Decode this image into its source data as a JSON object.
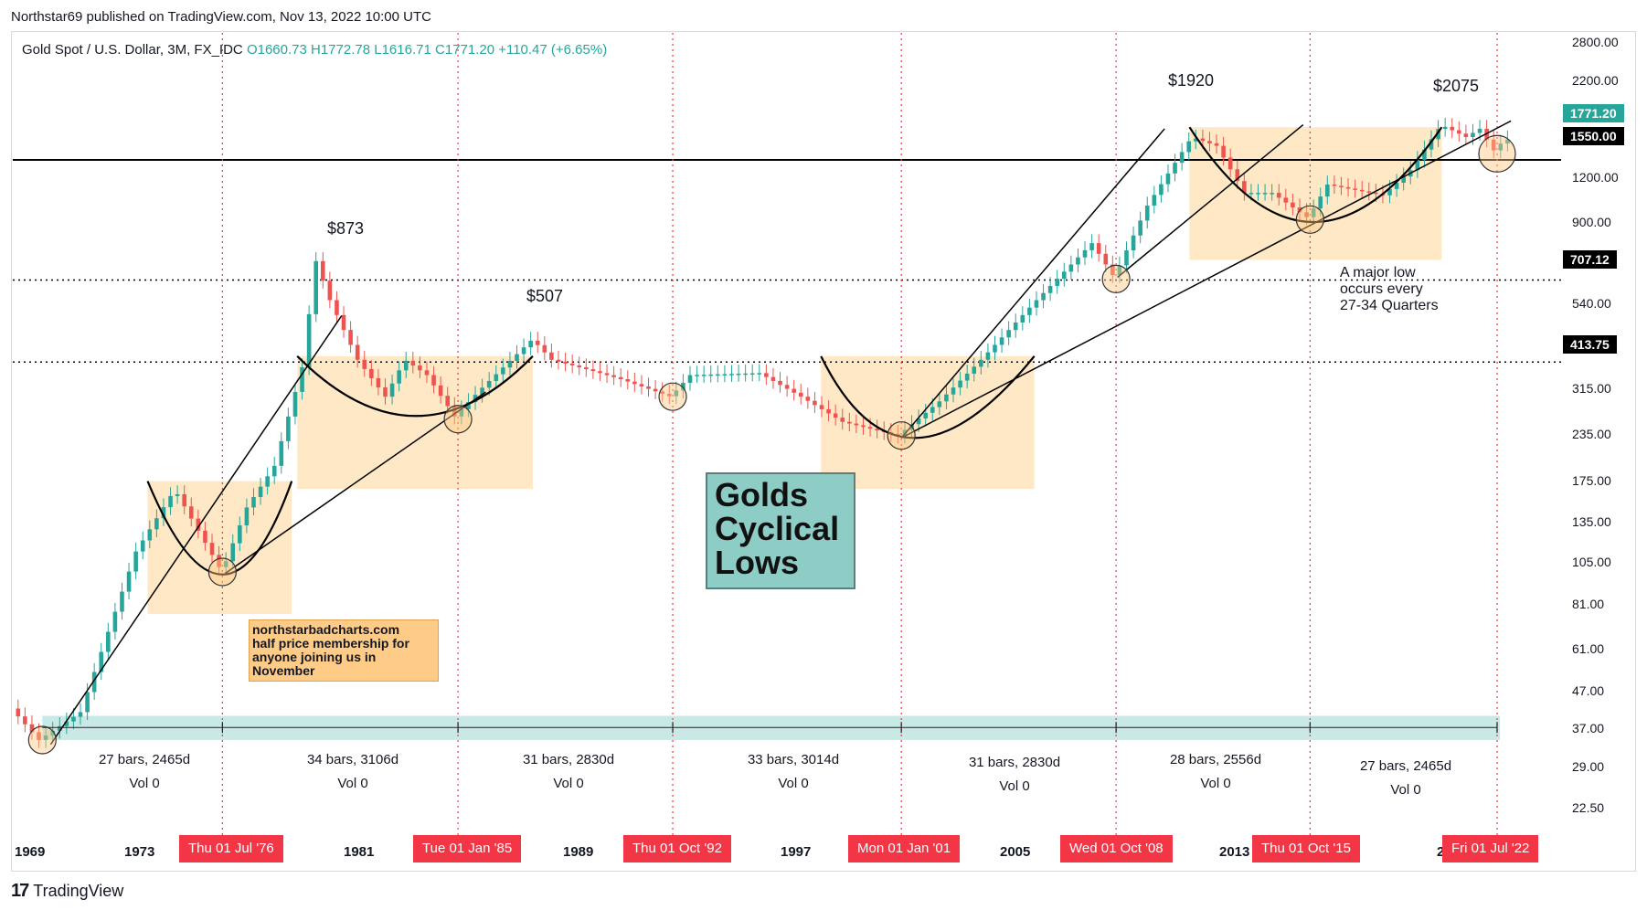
{
  "header": {
    "published": "Northstar69 published on TradingView.com, Nov 13, 2022 10:00 UTC"
  },
  "symbol": {
    "name": "Gold Spot / U.S. Dollar, 3M, FX_IDC",
    "open": "O1660.73",
    "high": "H1772.78",
    "low": "L1616.71",
    "close": "C1771.20",
    "change": "+110.47 (+6.65%)"
  },
  "annotations": {
    "peak_1": "$873",
    "peak_2": "$507",
    "peak_3": "$1920",
    "peak_4": "$2075",
    "cycle_note_1": "A major low",
    "cycle_note_2": "occurs every",
    "cycle_note_3": "27-34 Quarters",
    "promo_1": "northstarbadcharts.com",
    "promo_2": "half price membership for",
    "promo_3": "anyone joining us in",
    "promo_4": "November",
    "title_1": "Golds",
    "title_2": "Cyclical",
    "title_3": "Lows"
  },
  "cycles": [
    {
      "bars": "27 bars, 2465d",
      "vol": "Vol 0"
    },
    {
      "bars": "34 bars, 3106d",
      "vol": "Vol 0"
    },
    {
      "bars": "31 bars, 2830d",
      "vol": "Vol 0"
    },
    {
      "bars": "33 bars, 3014d",
      "vol": "Vol 0"
    },
    {
      "bars": "31 bars, 2830d",
      "vol": "Vol 0"
    },
    {
      "bars": "28 bars, 2556d",
      "vol": "Vol 0"
    },
    {
      "bars": "27 bars, 2465d",
      "vol": "Vol 0"
    }
  ],
  "time_axis": {
    "years": [
      "1969",
      "1973",
      "1981",
      "1989",
      "1997",
      "2005",
      "2013",
      "2"
    ],
    "date_tags": [
      "Thu 01 Jul '76",
      "Tue 01 Jan '85",
      "Thu 01 Oct '92",
      "Mon 01 Jan '01",
      "Wed 01 Oct '08",
      "Thu 01 Oct '15",
      "Fri 01 Jul '22"
    ]
  },
  "price_axis": {
    "ticks": [
      "2800.00",
      "2200.00",
      "1200.00",
      "900.00",
      "540.00",
      "315.00",
      "235.00",
      "175.00",
      "135.00",
      "105.00",
      "81.00",
      "61.00",
      "47.00",
      "37.00",
      "29.00",
      "22.50"
    ],
    "tags": [
      {
        "label": "1771.20",
        "color": "#26a69a"
      },
      {
        "label": "1550.00",
        "color": "#000000"
      },
      {
        "label": "707.12",
        "color": "#000000"
      },
      {
        "label": "413.75",
        "color": "#000000"
      }
    ]
  },
  "colors": {
    "up": "#26a69a",
    "down": "#ef5350",
    "cycle_line": "#f23645",
    "base_band": "#b2dfdb",
    "cup_fill": "#ffe0b2"
  },
  "chart_data": {
    "type": "candlestick",
    "scale": "log",
    "ylim": [
      20,
      3000
    ],
    "x_range": [
      "1969",
      "2023"
    ],
    "peaks": [
      {
        "label": "$873",
        "date": "1980-01",
        "value": 873
      },
      {
        "label": "$507",
        "date": "1987-10",
        "value": 507
      },
      {
        "label": "$1920",
        "date": "2011-08",
        "value": 1920
      },
      {
        "label": "$2075",
        "date": "2020-08",
        "value": 2075
      }
    ],
    "cyclical_lows": [
      {
        "date": "1970-01",
        "value": 35
      },
      {
        "date": "1976-07",
        "value": 105
      },
      {
        "date": "1985-01",
        "value": 285
      },
      {
        "date": "1992-10",
        "value": 330
      },
      {
        "date": "2001-01",
        "value": 256
      },
      {
        "date": "2008-10",
        "value": 712
      },
      {
        "date": "2015-10",
        "value": 1050
      },
      {
        "date": "2022-07",
        "value": 1614
      }
    ],
    "horizontal_levels": [
      1550,
      707.12,
      413.75
    ],
    "last_price": 1771.2
  }
}
